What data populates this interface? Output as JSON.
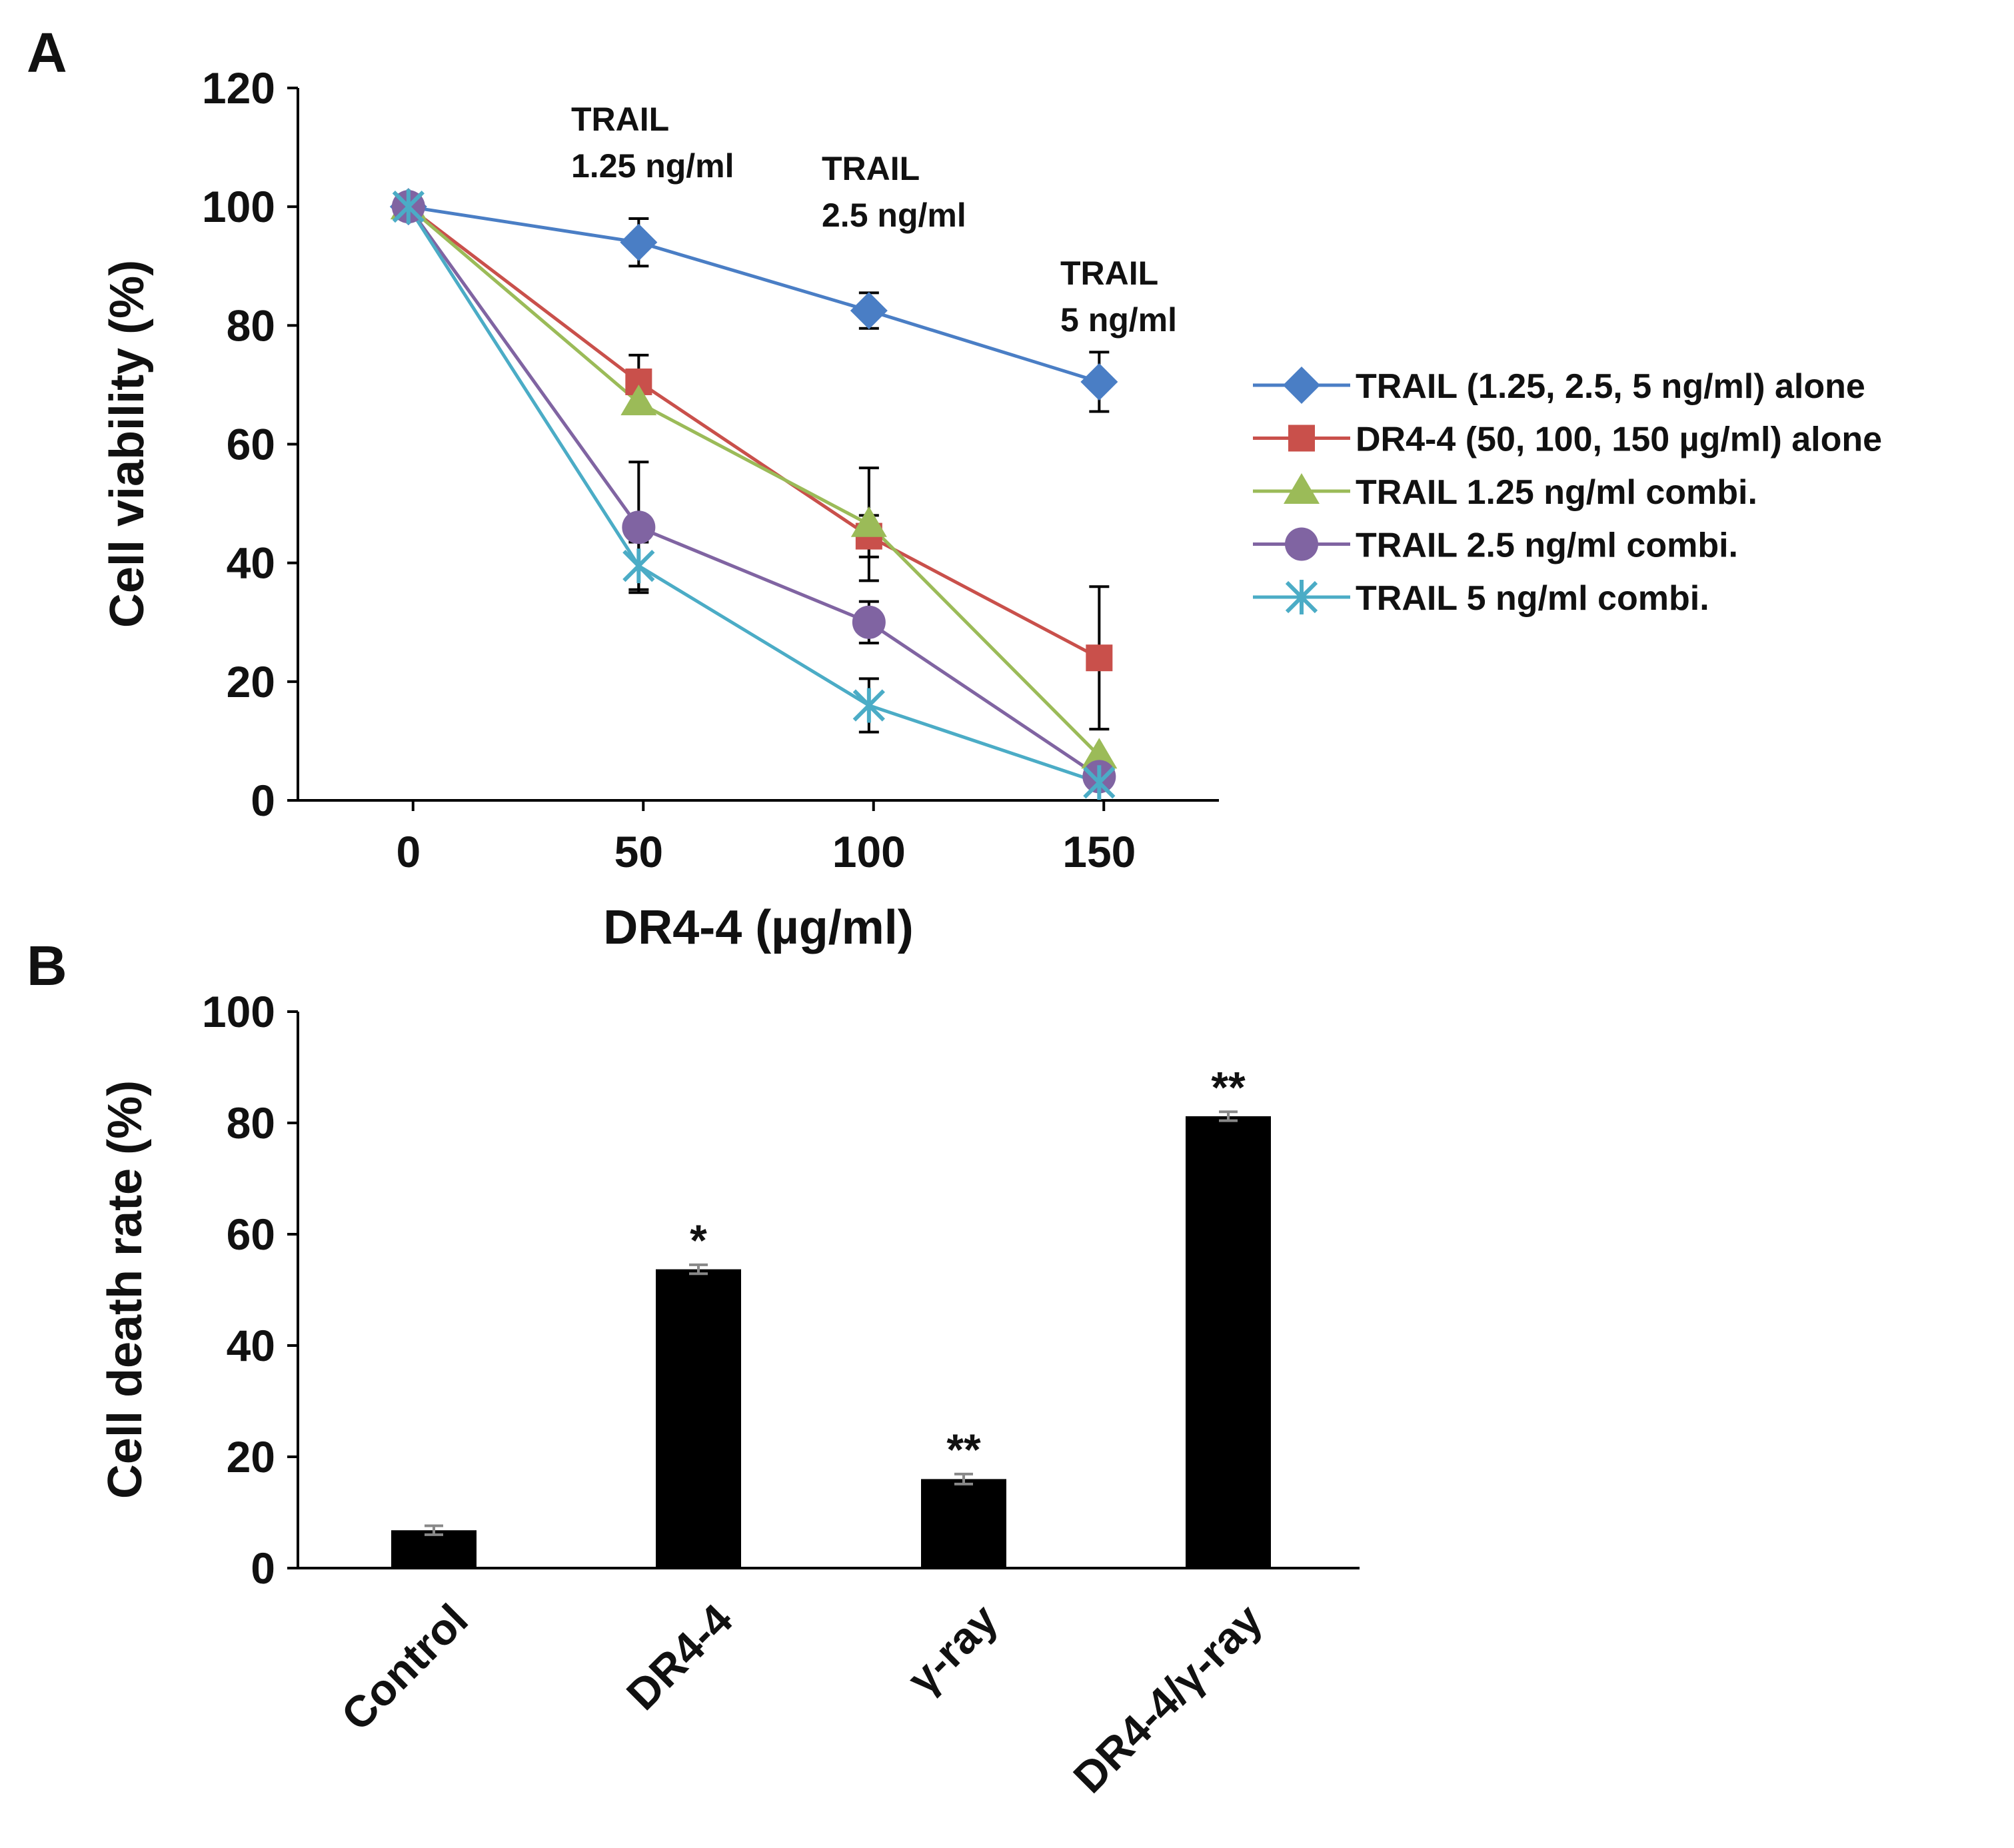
{
  "figure": {
    "panel_a_label": "A",
    "panel_b_label": "B"
  },
  "chart_data": [
    {
      "type": "line",
      "panel": "A",
      "title": "",
      "xlabel": "DR4-4 (µg/ml)",
      "ylabel": "Cell viability (%)",
      "x": [
        0,
        50,
        100,
        150
      ],
      "xlim": [
        -24,
        176
      ],
      "ylim": [
        0,
        120
      ],
      "xticks": [
        0,
        50,
        100,
        150
      ],
      "yticks": [
        0,
        20,
        40,
        60,
        80,
        100,
        120
      ],
      "legend_position": "right",
      "series": [
        {
          "name": "TRAIL (1.25, 2.5, 5 ng/ml) alone",
          "color": "#4a7ec5",
          "marker": "diamond",
          "values": [
            100,
            94,
            82.5,
            70.5
          ],
          "errors": [
            0,
            4,
            3,
            5
          ]
        },
        {
          "name": "DR4-4 (50, 100, 150 µg/ml) alone",
          "color": "#c9504b",
          "marker": "square",
          "values": [
            100,
            70.5,
            44.5,
            24
          ],
          "errors": [
            0,
            4.5,
            3.5,
            12
          ]
        },
        {
          "name": "TRAIL 1.25 ng/ml combi.",
          "color": "#9bbb58",
          "marker": "triangle",
          "values": [
            100,
            67,
            46.5,
            7.5
          ],
          "errors": [
            0,
            0,
            9.5,
            0
          ]
        },
        {
          "name": "TRAIL 2.5 ng/ml combi.",
          "color": "#8064a2",
          "marker": "circle",
          "values": [
            100,
            46,
            30,
            4
          ],
          "errors": [
            0,
            11,
            3.5,
            0
          ]
        },
        {
          "name": "TRAIL 5 ng/ml combi.",
          "color": "#4bacc6",
          "marker": "asterisk",
          "values": [
            100,
            39.5,
            16,
            3
          ],
          "errors": [
            0,
            4,
            4.5,
            0
          ]
        }
      ],
      "annotations": [
        {
          "x": 50,
          "lines": [
            "TRAIL",
            "1.25 ng/ml"
          ]
        },
        {
          "x": 100,
          "lines": [
            "TRAIL",
            "2.5 ng/ml"
          ]
        },
        {
          "x": 150,
          "lines": [
            "TRAIL",
            "5 ng/ml"
          ]
        }
      ]
    },
    {
      "type": "bar",
      "panel": "B",
      "title": "",
      "xlabel": "",
      "ylabel": "Cell death rate (%)",
      "categories": [
        "Control",
        "DR4-4",
        "γ-ray",
        "DR4-4/γ-ray"
      ],
      "values": [
        6.8,
        53.7,
        16,
        81.2
      ],
      "errors": [
        0.8,
        0.8,
        0.9,
        0.8
      ],
      "significance": [
        "",
        "*",
        "**",
        "**"
      ],
      "ylim": [
        0,
        100
      ],
      "yticks": [
        0,
        20,
        40,
        60,
        80,
        100
      ],
      "bar_color": "#000000",
      "grid": false
    }
  ]
}
